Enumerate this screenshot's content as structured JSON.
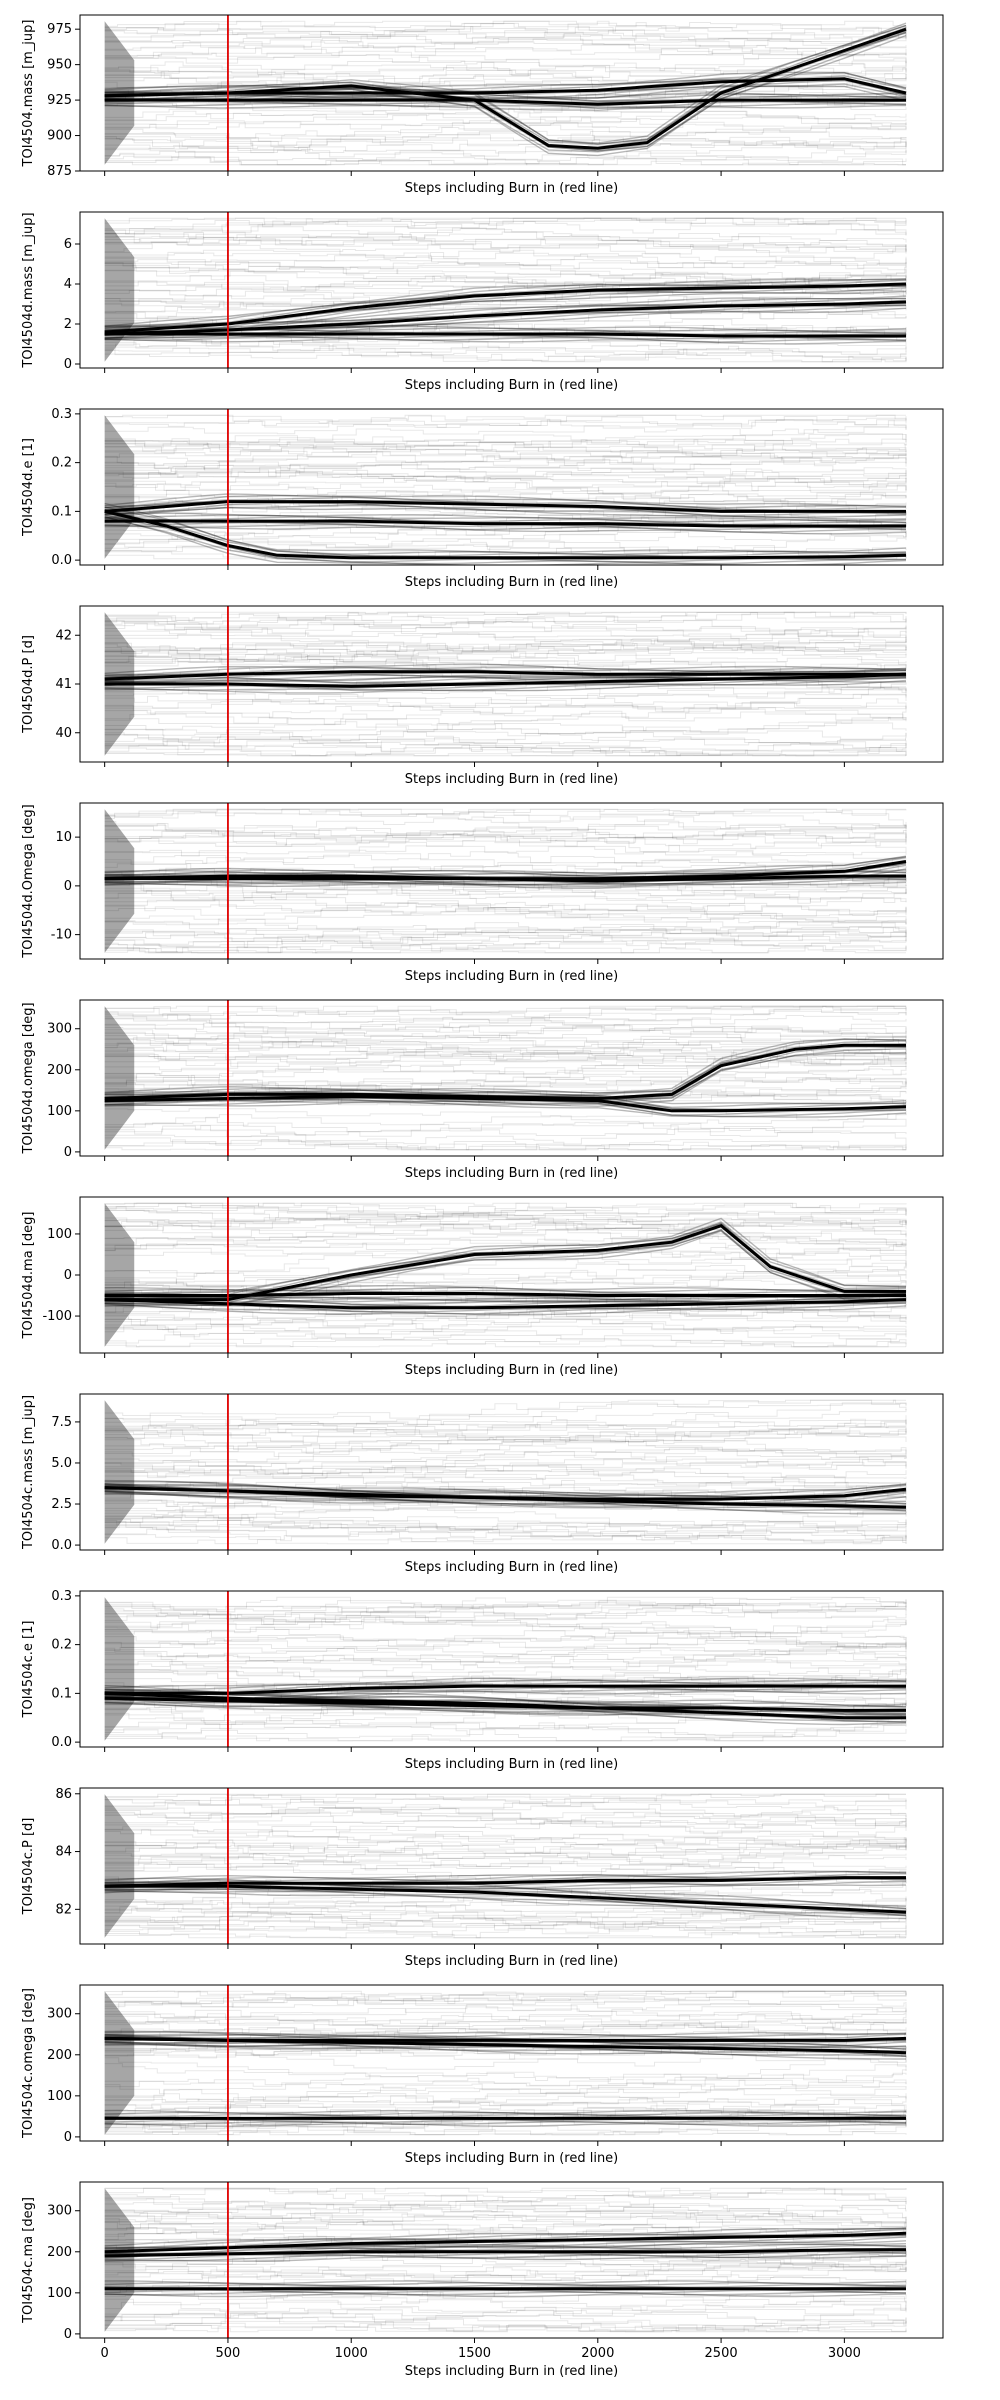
{
  "burn_in_color": "#e00000",
  "trace_color": "#000000",
  "chart_data": [
    {
      "type": "line",
      "ylabel": "TOI4504.mass [m_jup]",
      "xlabel": "Steps including Burn in (red line)",
      "xlim": [
        -100,
        3400
      ],
      "ylim": [
        875,
        985
      ],
      "yticks": [
        875,
        900,
        925,
        950,
        975
      ],
      "show_xtick_labels": false,
      "burn_in": 500,
      "series": [
        {
          "x": [
            0,
            500,
            1000,
            1500,
            2000,
            2500,
            3000,
            3250
          ],
          "y": [
            928,
            930,
            930,
            930,
            932,
            938,
            940,
            930
          ]
        },
        {
          "x": [
            0,
            500,
            1000,
            1500,
            1800,
            2000,
            2200,
            2500,
            3000,
            3250
          ],
          "y": [
            928,
            930,
            935,
            925,
            893,
            891,
            895,
            930,
            960,
            975
          ]
        },
        {
          "x": [
            0,
            500,
            1000,
            1500,
            2000,
            2500,
            3000,
            3250
          ],
          "y": [
            925,
            925,
            925,
            925,
            922,
            925,
            925,
            925
          ]
        }
      ]
    },
    {
      "type": "line",
      "ylabel": "TOI4504d.mass [m_jup]",
      "xlabel": "Steps including Burn in (red line)",
      "xlim": [
        -100,
        3400
      ],
      "ylim": [
        -0.2,
        7.6
      ],
      "yticks": [
        0,
        2,
        4,
        6
      ],
      "show_xtick_labels": false,
      "burn_in": 500,
      "series": [
        {
          "x": [
            0,
            500,
            1000,
            1500,
            2000,
            2500,
            3000,
            3250
          ],
          "y": [
            1.6,
            2.0,
            2.8,
            3.4,
            3.7,
            3.8,
            3.9,
            4.0
          ]
        },
        {
          "x": [
            0,
            500,
            1000,
            1500,
            2000,
            2500,
            3000,
            3250
          ],
          "y": [
            1.5,
            1.7,
            2.0,
            2.4,
            2.7,
            2.9,
            3.0,
            3.1
          ]
        },
        {
          "x": [
            0,
            500,
            1000,
            1500,
            2000,
            2500,
            3000,
            3250
          ],
          "y": [
            1.5,
            1.5,
            1.5,
            1.5,
            1.5,
            1.4,
            1.4,
            1.4
          ]
        }
      ]
    },
    {
      "type": "line",
      "ylabel": "TOI4504d.e [1]",
      "xlabel": "Steps including Burn in (red line)",
      "xlim": [
        -100,
        3400
      ],
      "ylim": [
        -0.01,
        0.31
      ],
      "yticks": [
        0.0,
        0.1,
        0.2,
        0.3
      ],
      "show_xtick_labels": false,
      "burn_in": 500,
      "series": [
        {
          "x": [
            0,
            250,
            500,
            1000,
            1500,
            2000,
            2500,
            3000,
            3250
          ],
          "y": [
            0.1,
            0.11,
            0.12,
            0.12,
            0.115,
            0.11,
            0.1,
            0.1,
            0.1
          ]
        },
        {
          "x": [
            0,
            500,
            1000,
            1500,
            2000,
            2500,
            3000,
            3250
          ],
          "y": [
            0.08,
            0.08,
            0.08,
            0.075,
            0.075,
            0.07,
            0.07,
            0.07
          ]
        },
        {
          "x": [
            0,
            250,
            500,
            700,
            1000,
            1500,
            2000,
            2500,
            3000,
            3250
          ],
          "y": [
            0.1,
            0.07,
            0.03,
            0.01,
            0.005,
            0.005,
            0.005,
            0.005,
            0.007,
            0.01
          ]
        }
      ]
    },
    {
      "type": "line",
      "ylabel": "TOI4504d.P [d]",
      "xlabel": "Steps including Burn in (red line)",
      "xlim": [
        -100,
        3400
      ],
      "ylim": [
        39.4,
        42.6
      ],
      "yticks": [
        40,
        41,
        42
      ],
      "show_xtick_labels": false,
      "burn_in": 500,
      "series": [
        {
          "x": [
            0,
            500,
            1000,
            1500,
            2000,
            2500,
            3000,
            3250
          ],
          "y": [
            41.1,
            41.2,
            41.25,
            41.25,
            41.2,
            41.2,
            41.2,
            41.2
          ]
        },
        {
          "x": [
            0,
            500,
            1000,
            1500,
            2000,
            2500,
            3000,
            3250
          ],
          "y": [
            41.0,
            41.0,
            40.95,
            41.0,
            41.05,
            41.1,
            41.15,
            41.2
          ]
        }
      ]
    },
    {
      "type": "line",
      "ylabel": "TOI4504d.Omega [deg]",
      "xlabel": "Steps including Burn in (red line)",
      "xlim": [
        -100,
        3400
      ],
      "ylim": [
        -15,
        17
      ],
      "yticks": [
        -10,
        0,
        10
      ],
      "show_xtick_labels": false,
      "burn_in": 500,
      "series": [
        {
          "x": [
            0,
            500,
            1000,
            1500,
            2000,
            2500,
            3000,
            3250
          ],
          "y": [
            1.5,
            2,
            2,
            1.5,
            1.5,
            2,
            3,
            5
          ]
        },
        {
          "x": [
            0,
            500,
            1000,
            1500,
            2000,
            2500,
            3000,
            3250
          ],
          "y": [
            1.5,
            1.5,
            1.5,
            1.5,
            1,
            1.5,
            2,
            2
          ]
        }
      ]
    },
    {
      "type": "line",
      "ylabel": "TOI4504d.omega [deg]",
      "xlabel": "Steps including Burn in (red line)",
      "xlim": [
        -100,
        3400
      ],
      "ylim": [
        -10,
        370
      ],
      "yticks": [
        0,
        100,
        200,
        300
      ],
      "show_xtick_labels": false,
      "burn_in": 500,
      "series": [
        {
          "x": [
            0,
            500,
            1000,
            1500,
            2000,
            2300,
            2500,
            2800,
            3000,
            3250
          ],
          "y": [
            130,
            140,
            140,
            135,
            130,
            140,
            210,
            250,
            260,
            260
          ]
        },
        {
          "x": [
            0,
            500,
            1000,
            1500,
            2000,
            2300,
            2500,
            3000,
            3250
          ],
          "y": [
            125,
            130,
            135,
            130,
            125,
            100,
            100,
            105,
            110
          ]
        }
      ]
    },
    {
      "type": "line",
      "ylabel": "TOI4504d.ma [deg]",
      "xlabel": "Steps including Burn in (red line)",
      "xlim": [
        -100,
        3400
      ],
      "ylim": [
        -190,
        190
      ],
      "yticks": [
        -100,
        0,
        100
      ],
      "show_xtick_labels": false,
      "burn_in": 500,
      "series": [
        {
          "x": [
            0,
            500,
            1000,
            1500,
            2000,
            2300,
            2500,
            2700,
            3000,
            3250
          ],
          "y": [
            -60,
            -60,
            0,
            50,
            60,
            80,
            120,
            20,
            -40,
            -40
          ]
        },
        {
          "x": [
            0,
            500,
            1000,
            1500,
            2000,
            2500,
            3000,
            3250
          ],
          "y": [
            -60,
            -70,
            -80,
            -80,
            -75,
            -70,
            -65,
            -60
          ]
        },
        {
          "x": [
            0,
            500,
            1000,
            1500,
            2000,
            2500,
            3000,
            3250
          ],
          "y": [
            -50,
            -50,
            -45,
            -45,
            -50,
            -50,
            -50,
            -50
          ]
        }
      ]
    },
    {
      "type": "line",
      "ylabel": "TOI4504c.mass [m_jup]",
      "xlabel": "Steps including Burn in (red line)",
      "xlim": [
        -100,
        3400
      ],
      "ylim": [
        -0.3,
        9.2
      ],
      "yticks": [
        0.0,
        2.5,
        5.0,
        7.5
      ],
      "show_xtick_labels": false,
      "burn_in": 500,
      "series": [
        {
          "x": [
            0,
            500,
            1000,
            1500,
            2000,
            2500,
            3000,
            3250
          ],
          "y": [
            3.5,
            3.3,
            3.0,
            2.9,
            2.8,
            2.8,
            3.0,
            3.4
          ]
        },
        {
          "x": [
            0,
            500,
            1000,
            1500,
            2000,
            2500,
            3000,
            3250
          ],
          "y": [
            3.5,
            3.3,
            3.1,
            2.9,
            2.7,
            2.5,
            2.4,
            2.3
          ]
        }
      ]
    },
    {
      "type": "line",
      "ylabel": "TOI4504c.e [1]",
      "xlabel": "Steps including Burn in (red line)",
      "xlim": [
        -100,
        3400
      ],
      "ylim": [
        -0.01,
        0.31
      ],
      "yticks": [
        0.0,
        0.1,
        0.2,
        0.3
      ],
      "show_xtick_labels": false,
      "burn_in": 500,
      "series": [
        {
          "x": [
            0,
            500,
            1000,
            1500,
            2000,
            2500,
            3000,
            3250
          ],
          "y": [
            0.1,
            0.1,
            0.11,
            0.115,
            0.115,
            0.115,
            0.115,
            0.115
          ]
        },
        {
          "x": [
            0,
            500,
            1000,
            1500,
            2000,
            2500,
            3000,
            3250
          ],
          "y": [
            0.09,
            0.085,
            0.08,
            0.075,
            0.07,
            0.07,
            0.065,
            0.065
          ]
        },
        {
          "x": [
            0,
            500,
            1000,
            1500,
            2000,
            2500,
            3000,
            3250
          ],
          "y": [
            0.1,
            0.09,
            0.085,
            0.08,
            0.07,
            0.06,
            0.05,
            0.05
          ]
        }
      ]
    },
    {
      "type": "line",
      "ylabel": "TOI4504c.P [d]",
      "xlabel": "Steps including Burn in (red line)",
      "xlim": [
        -100,
        3400
      ],
      "ylim": [
        80.8,
        86.2
      ],
      "yticks": [
        82,
        84,
        86
      ],
      "show_xtick_labels": false,
      "burn_in": 500,
      "series": [
        {
          "x": [
            0,
            500,
            1000,
            1500,
            2000,
            2500,
            3000,
            3250
          ],
          "y": [
            82.8,
            82.9,
            82.9,
            82.9,
            83.0,
            83.0,
            83.1,
            83.1
          ]
        },
        {
          "x": [
            0,
            500,
            1000,
            1500,
            2000,
            2500,
            3000,
            3250
          ],
          "y": [
            82.8,
            82.8,
            82.7,
            82.6,
            82.4,
            82.2,
            82.0,
            81.9
          ]
        }
      ]
    },
    {
      "type": "line",
      "ylabel": "TOI4504c.omega [deg]",
      "xlabel": "Steps including Burn in (red line)",
      "xlim": [
        -100,
        3400
      ],
      "ylim": [
        -10,
        370
      ],
      "yticks": [
        0,
        100,
        200,
        300
      ],
      "show_xtick_labels": false,
      "burn_in": 500,
      "series": [
        {
          "x": [
            0,
            500,
            1000,
            1500,
            2000,
            2500,
            3000,
            3250
          ],
          "y": [
            240,
            235,
            235,
            235,
            235,
            235,
            235,
            240
          ]
        },
        {
          "x": [
            0,
            500,
            1000,
            1500,
            2000,
            2500,
            3000,
            3250
          ],
          "y": [
            240,
            235,
            230,
            225,
            220,
            215,
            210,
            205
          ]
        },
        {
          "x": [
            0,
            500,
            1000,
            1500,
            2000,
            2500,
            3000,
            3250
          ],
          "y": [
            45,
            45,
            45,
            45,
            45,
            45,
            45,
            45
          ]
        }
      ]
    },
    {
      "type": "line",
      "ylabel": "TOI4504c.ma [deg]",
      "xlabel": "Steps including Burn in (red line)",
      "xlim": [
        -100,
        3400
      ],
      "ylim": [
        -10,
        370
      ],
      "yticks": [
        0,
        100,
        200,
        300
      ],
      "xticks": [
        0,
        500,
        1000,
        1500,
        2000,
        2500,
        3000
      ],
      "show_xtick_labels": true,
      "burn_in": 500,
      "series": [
        {
          "x": [
            0,
            500,
            1000,
            1500,
            2000,
            2500,
            3000,
            3250
          ],
          "y": [
            200,
            210,
            220,
            225,
            230,
            235,
            240,
            245
          ]
        },
        {
          "x": [
            0,
            500,
            1000,
            1500,
            2000,
            2500,
            3000,
            3250
          ],
          "y": [
            190,
            195,
            200,
            200,
            200,
            200,
            205,
            205
          ]
        },
        {
          "x": [
            0,
            500,
            1000,
            1500,
            2000,
            2500,
            3000,
            3250
          ],
          "y": [
            110,
            110,
            110,
            110,
            110,
            110,
            110,
            110
          ]
        }
      ]
    }
  ]
}
